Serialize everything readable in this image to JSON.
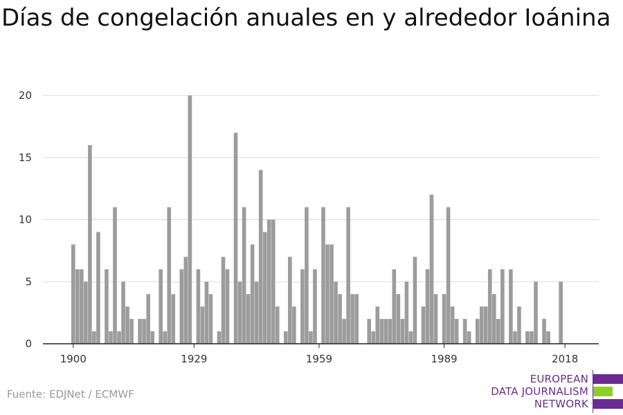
{
  "title": "Días de congelación anuales en y alrededor Ioánina",
  "source": "Fuente: EDJNet / ECMWF",
  "logo": {
    "lines": [
      "EUROPEAN",
      "DATA JOURNALISM",
      "NETWORK"
    ],
    "colors": {
      "purple": "#6a2c91",
      "green": "#8fce2a"
    }
  },
  "chart_data": {
    "type": "bar",
    "title": "Días de congelación anuales en y alrededor Ioánina",
    "xlabel": "",
    "ylabel": "",
    "x": [
      1900,
      1901,
      1902,
      1903,
      1904,
      1905,
      1906,
      1907,
      1908,
      1909,
      1910,
      1911,
      1912,
      1913,
      1914,
      1915,
      1916,
      1917,
      1918,
      1919,
      1920,
      1921,
      1922,
      1923,
      1924,
      1925,
      1926,
      1927,
      1928,
      1929,
      1930,
      1931,
      1932,
      1933,
      1934,
      1935,
      1936,
      1937,
      1938,
      1939,
      1940,
      1941,
      1942,
      1943,
      1944,
      1945,
      1946,
      1947,
      1948,
      1949,
      1950,
      1951,
      1952,
      1953,
      1954,
      1955,
      1956,
      1957,
      1958,
      1959,
      1960,
      1961,
      1962,
      1963,
      1964,
      1965,
      1966,
      1967,
      1968,
      1969,
      1970,
      1971,
      1972,
      1973,
      1974,
      1975,
      1976,
      1977,
      1978,
      1979,
      1980,
      1981,
      1982,
      1983,
      1984,
      1985,
      1986,
      1987,
      1988,
      1989,
      1990,
      1991,
      1992,
      1993,
      1994,
      1995,
      1996,
      1997,
      1998,
      1999,
      2000,
      2001,
      2002,
      2003,
      2004,
      2005,
      2006,
      2007,
      2008,
      2009,
      2010,
      2011,
      2012,
      2013,
      2014,
      2015,
      2016,
      2017,
      2018
    ],
    "values": [
      8,
      6,
      6,
      5,
      16,
      1,
      9,
      0,
      6,
      1,
      11,
      1,
      5,
      3,
      2,
      0,
      2,
      2,
      4,
      1,
      0,
      6,
      1,
      11,
      4,
      0,
      6,
      7,
      20,
      0,
      6,
      3,
      5,
      4,
      0,
      1,
      7,
      6,
      0,
      17,
      5,
      11,
      4,
      8,
      5,
      14,
      9,
      10,
      10,
      3,
      0,
      1,
      7,
      3,
      0,
      6,
      11,
      1,
      6,
      0,
      11,
      8,
      8,
      5,
      4,
      2,
      11,
      4,
      4,
      0,
      0,
      2,
      1,
      3,
      2,
      2,
      2,
      6,
      4,
      2,
      5,
      1,
      7,
      0,
      3,
      6,
      12,
      4,
      0,
      4,
      11,
      3,
      2,
      0,
      2,
      1,
      0,
      2,
      3,
      3,
      6,
      4,
      2,
      6,
      0,
      6,
      1,
      3,
      0,
      1,
      1,
      5,
      0,
      2,
      1,
      0,
      0,
      5,
      0
    ],
    "xticks": [
      1900,
      1929,
      1959,
      1989,
      2018
    ],
    "yticks": [
      0,
      5,
      10,
      15,
      20
    ],
    "ylim": [
      0,
      20
    ],
    "grid": true,
    "colors": {
      "bar": "#9c9c9c",
      "grid": "#dddddd",
      "axis": "#222222",
      "text": "#333333"
    }
  }
}
